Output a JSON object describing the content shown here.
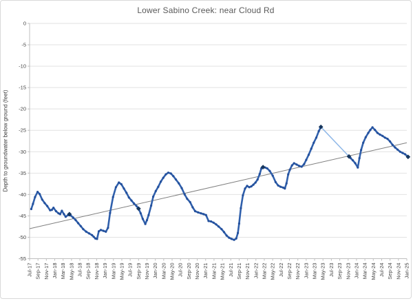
{
  "frame": {
    "background": "#ffffff",
    "border_color": "#d9d9d9"
  },
  "chart_data": {
    "type": "line",
    "title": "Lower Sabino Creek: near Cloud Rd",
    "xlabel": "",
    "ylabel": "Depth to groundwater below ground (feet)",
    "ylim": [
      -55,
      0
    ],
    "ytick_interval": 5,
    "ytick_labels": [
      "0",
      "-5",
      "-10",
      "-15",
      "-20",
      "-25",
      "-30",
      "-35",
      "-40",
      "-45",
      "-50",
      "-55"
    ],
    "xtick_labels": [
      "Jul-17",
      "Sep-17",
      "Nov-17",
      "Jan-18",
      "Mar-18",
      "May-18",
      "Jul-18",
      "Sep-18",
      "Nov-18",
      "Jan-19",
      "Mar-19",
      "May-19",
      "Jul-19",
      "Sep-19",
      "Nov-19",
      "Jan-20",
      "Mar-20",
      "May-20",
      "Jul-20",
      "Sep-20",
      "Nov-20",
      "Jan-21",
      "Mar-21",
      "May-21",
      "Jul-21",
      "Sep-21",
      "Nov-21",
      "Jan-22",
      "Mar-22",
      "May-22",
      "Jul-22",
      "Sep-22",
      "Nov-22",
      "Jan-23",
      "Mar-23",
      "May-23",
      "Jul-23",
      "Sep-23",
      "Nov-23",
      "Jan-24",
      "Mar-24",
      "May-24",
      "Jul-24",
      "Sep-24",
      "Nov-24",
      "Jan-25"
    ],
    "x_months_per_tick": 2,
    "x_month_span": 90,
    "grid": "horizontal",
    "legend": "none",
    "colors": {
      "line": "#3060ac",
      "marker": "#24509c",
      "gap_line": "#8fb8e8",
      "manual_marker": "#17375e",
      "trend_line": "#7f7f7f",
      "gridline": "#e2e2e2",
      "axis_line": "#bfbfbf",
      "tick_label": "#444444",
      "title": "#595959"
    },
    "series": [
      {
        "name": "water_level_recorded",
        "role": "main",
        "points": [
          [
            0.4,
            -43.4
          ],
          [
            0.8,
            -42.2
          ],
          [
            1.3,
            -40.6
          ],
          [
            1.9,
            -39.4
          ],
          [
            2.4,
            -39.9
          ],
          [
            3.0,
            -41.2
          ],
          [
            3.6,
            -42.0
          ],
          [
            4.2,
            -42.7
          ],
          [
            4.9,
            -43.7
          ],
          [
            5.3,
            -43.6
          ],
          [
            5.7,
            -43.1
          ],
          [
            6.3,
            -43.9
          ],
          [
            6.9,
            -44.4
          ],
          [
            7.3,
            -44.6
          ],
          [
            7.7,
            -43.8
          ],
          [
            8.2,
            -44.6
          ],
          [
            8.6,
            -45.2
          ],
          [
            9.2,
            -44.8
          ],
          [
            9.8,
            -44.9
          ],
          [
            10.4,
            -45.4
          ],
          [
            11.0,
            -46.0
          ],
          [
            11.6,
            -46.7
          ],
          [
            12.2,
            -47.4
          ],
          [
            12.8,
            -48.1
          ],
          [
            13.5,
            -48.7
          ],
          [
            14.2,
            -49.1
          ],
          [
            14.9,
            -49.5
          ],
          [
            15.3,
            -49.9
          ],
          [
            15.7,
            -50.3
          ],
          [
            16.1,
            -50.4
          ],
          [
            16.5,
            -48.6
          ],
          [
            17.0,
            -48.3
          ],
          [
            17.6,
            -48.5
          ],
          [
            18.2,
            -48.7
          ],
          [
            18.7,
            -47.8
          ],
          [
            19.2,
            -44.3
          ],
          [
            19.9,
            -40.6
          ],
          [
            20.6,
            -38.3
          ],
          [
            21.3,
            -37.2
          ],
          [
            21.9,
            -37.6
          ],
          [
            22.5,
            -38.6
          ],
          [
            23.1,
            -39.6
          ],
          [
            23.7,
            -40.7
          ],
          [
            24.3,
            -41.4
          ],
          [
            24.9,
            -42.1
          ],
          [
            25.5,
            -42.7
          ],
          [
            26.0,
            -43.3
          ],
          [
            26.5,
            -44.4
          ],
          [
            27.0,
            -45.7
          ],
          [
            27.6,
            -46.9
          ],
          [
            28.0,
            -46.0
          ],
          [
            28.4,
            -44.8
          ],
          [
            29.0,
            -42.6
          ],
          [
            29.5,
            -40.5
          ],
          [
            30.1,
            -39.2
          ],
          [
            30.7,
            -38.2
          ],
          [
            31.3,
            -37.0
          ],
          [
            31.9,
            -36.1
          ],
          [
            32.5,
            -35.3
          ],
          [
            33.1,
            -34.9
          ],
          [
            33.7,
            -35.1
          ],
          [
            34.3,
            -35.7
          ],
          [
            34.9,
            -36.5
          ],
          [
            35.6,
            -37.4
          ],
          [
            36.3,
            -38.5
          ],
          [
            37.0,
            -40.0
          ],
          [
            37.6,
            -41.0
          ],
          [
            38.3,
            -41.8
          ],
          [
            38.9,
            -43.0
          ],
          [
            39.5,
            -43.9
          ],
          [
            40.2,
            -44.2
          ],
          [
            40.9,
            -44.4
          ],
          [
            41.5,
            -44.6
          ],
          [
            42.1,
            -44.8
          ],
          [
            42.7,
            -46.2
          ],
          [
            43.3,
            -46.3
          ],
          [
            43.9,
            -46.6
          ],
          [
            44.5,
            -47.0
          ],
          [
            45.1,
            -47.5
          ],
          [
            45.8,
            -48.1
          ],
          [
            46.4,
            -48.8
          ],
          [
            47.0,
            -49.6
          ],
          [
            47.6,
            -50.1
          ],
          [
            48.2,
            -50.4
          ],
          [
            48.8,
            -50.6
          ],
          [
            49.3,
            -50.3
          ],
          [
            49.7,
            -49.0
          ],
          [
            50.0,
            -46.8
          ],
          [
            50.4,
            -43.2
          ],
          [
            50.9,
            -40.2
          ],
          [
            51.4,
            -38.6
          ],
          [
            51.9,
            -38.0
          ],
          [
            52.4,
            -38.3
          ],
          [
            52.9,
            -38.1
          ],
          [
            53.4,
            -37.7
          ],
          [
            53.9,
            -37.2
          ],
          [
            54.4,
            -36.5
          ],
          [
            54.9,
            -35.2
          ],
          [
            55.3,
            -33.9
          ],
          [
            55.7,
            -33.6
          ],
          [
            56.2,
            -33.7
          ],
          [
            56.7,
            -33.9
          ],
          [
            57.3,
            -34.5
          ],
          [
            58.0,
            -35.6
          ],
          [
            58.7,
            -37.1
          ],
          [
            59.3,
            -37.9
          ],
          [
            59.9,
            -38.2
          ],
          [
            60.5,
            -38.4
          ],
          [
            60.9,
            -38.6
          ],
          [
            61.3,
            -37.4
          ],
          [
            61.7,
            -35.3
          ],
          [
            62.1,
            -34.2
          ],
          [
            62.6,
            -33.2
          ],
          [
            63.1,
            -32.7
          ],
          [
            63.7,
            -33.0
          ],
          [
            64.3,
            -33.3
          ],
          [
            64.9,
            -33.5
          ],
          [
            65.5,
            -32.9
          ],
          [
            66.0,
            -31.9
          ],
          [
            66.6,
            -30.7
          ],
          [
            67.2,
            -29.3
          ],
          [
            67.8,
            -27.9
          ],
          [
            68.4,
            -26.7
          ],
          [
            69.0,
            -25.2
          ],
          [
            69.5,
            -24.2
          ]
        ]
      },
      {
        "name": "data_gap_interpolated",
        "role": "gap",
        "points": [
          [
            69.5,
            -24.2
          ],
          [
            76.2,
            -31.1
          ]
        ]
      },
      {
        "name": "water_level_recorded_resumed",
        "role": "main",
        "points": [
          [
            76.2,
            -31.1
          ],
          [
            76.6,
            -31.5
          ],
          [
            77.1,
            -32.0
          ],
          [
            77.7,
            -32.7
          ],
          [
            78.3,
            -33.7
          ],
          [
            78.7,
            -31.5
          ],
          [
            79.1,
            -29.6
          ],
          [
            79.6,
            -27.9
          ],
          [
            80.2,
            -26.6
          ],
          [
            80.8,
            -25.6
          ],
          [
            81.3,
            -24.9
          ],
          [
            81.8,
            -24.3
          ],
          [
            82.4,
            -24.9
          ],
          [
            83.0,
            -25.6
          ],
          [
            83.6,
            -26.0
          ],
          [
            84.2,
            -26.3
          ],
          [
            84.8,
            -26.7
          ],
          [
            85.4,
            -27.0
          ],
          [
            86.0,
            -27.6
          ],
          [
            86.6,
            -28.4
          ],
          [
            87.2,
            -29.0
          ],
          [
            87.8,
            -29.5
          ],
          [
            88.4,
            -30.0
          ],
          [
            89.0,
            -30.3
          ],
          [
            89.6,
            -30.6
          ],
          [
            90.3,
            -31.2
          ]
        ]
      },
      {
        "name": "manual_measurements",
        "role": "diamond",
        "points": [
          [
            9.5,
            -44.6
          ],
          [
            26.0,
            -43.3
          ],
          [
            55.7,
            -33.6
          ],
          [
            69.5,
            -24.2
          ],
          [
            76.2,
            -31.1
          ],
          [
            90.3,
            -31.2
          ]
        ]
      },
      {
        "name": "linear_trend",
        "role": "trend",
        "points": [
          [
            0,
            -48.0
          ],
          [
            90,
            -27.9
          ]
        ]
      }
    ]
  }
}
